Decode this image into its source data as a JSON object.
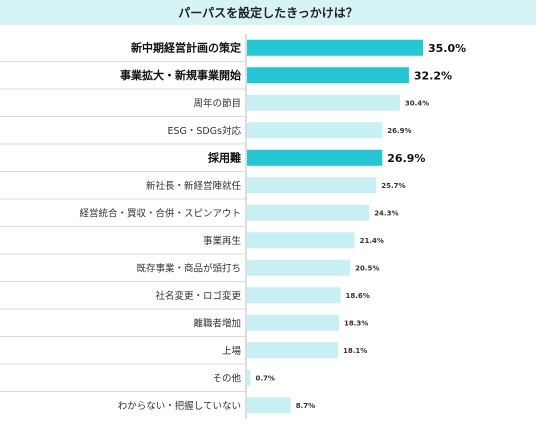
{
  "chart_data": {
    "type": "bar",
    "orientation": "horizontal",
    "title": "パーパスを設定したきっかけは？",
    "categories": [
      "新中期経営計画の策定",
      "事業拡大・新規事業開始",
      "周年の節目",
      "ESG・SDGs対応",
      "採用難",
      "新社長・新経営陣就任",
      "経営統合・買収・合併・スピンアウト",
      "事業再生",
      "既存事業・商品が頭打ち",
      "社名変更・ロゴ変更",
      "離職者増加",
      "上場",
      "その他",
      "わからない・把握していない"
    ],
    "values": [
      35.0,
      32.2,
      30.4,
      26.9,
      26.9,
      25.7,
      24.3,
      21.4,
      20.5,
      18.6,
      18.3,
      18.1,
      0.7,
      8.7
    ],
    "value_labels": [
      "35.0%",
      "32.2%",
      "30.4%",
      "26.9%",
      "26.9%",
      "25.7%",
      "24.3%",
      "21.4%",
      "20.5%",
      "18.6%",
      "18.3%",
      "18.1%",
      "0.7%",
      "8.7%"
    ],
    "highlighted": [
      true,
      true,
      false,
      false,
      true,
      false,
      false,
      false,
      false,
      false,
      false,
      false,
      false,
      false
    ],
    "xlim": [
      0,
      35
    ],
    "grid": false,
    "colors": {
      "highlight": "#26c6d4",
      "normal": "#c8eff4",
      "title_bg": "#d6f3f6",
      "divider": "#cfcfcf"
    }
  }
}
